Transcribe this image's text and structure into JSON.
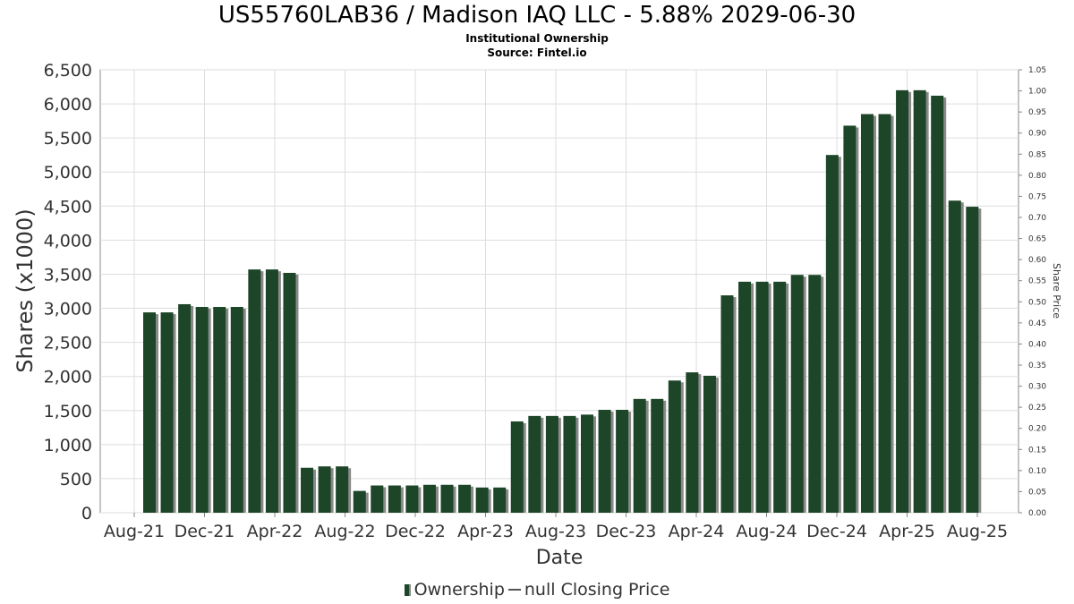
{
  "title": "US55760LAB36 / Madison IAQ LLC - 5.88% 2029-06-30",
  "subtitle": "Institutional Ownership",
  "source": "Source: Fintel.io",
  "legend": {
    "ownership": "Ownership",
    "price": "null Closing Price"
  },
  "colors": {
    "bar": "#1d4527",
    "bar_shadow": "#8a8a8a",
    "grid": "#dddddd",
    "axis": "#888888"
  },
  "chart_data": {
    "type": "bar",
    "xlabel": "Date",
    "ylabel": "Shares (x1000)",
    "y2label": "Share Price",
    "ylim": [
      0,
      6500
    ],
    "y2lim": [
      0,
      1.05
    ],
    "grid": true,
    "legend_position": "bottom",
    "yticks": [
      "0",
      "500",
      "1,000",
      "1,500",
      "2,000",
      "2,500",
      "3,000",
      "3,500",
      "4,000",
      "4,500",
      "5,000",
      "5,500",
      "6,000",
      "6,500"
    ],
    "y2ticks": [
      "0.00",
      "0.05",
      "0.10",
      "0.15",
      "0.20",
      "0.25",
      "0.30",
      "0.35",
      "0.40",
      "0.45",
      "0.50",
      "0.55",
      "0.60",
      "0.65",
      "0.70",
      "0.75",
      "0.80",
      "0.85",
      "0.90",
      "0.95",
      "1.00",
      "1.05"
    ],
    "xticks": [
      "Aug-21",
      "Dec-21",
      "Apr-22",
      "Aug-22",
      "Dec-22",
      "Apr-23",
      "Aug-23",
      "Dec-23",
      "Apr-24",
      "Aug-24",
      "Dec-24",
      "Apr-25",
      "Aug-25"
    ],
    "series": [
      {
        "name": "Ownership",
        "values": [
          2940,
          2940,
          3060,
          3020,
          3020,
          3020,
          3570,
          3570,
          3520,
          660,
          680,
          680,
          320,
          400,
          400,
          400,
          410,
          410,
          410,
          370,
          370,
          1340,
          1420,
          1420,
          1420,
          1440,
          1510,
          1510,
          1670,
          1670,
          1940,
          2060,
          2010,
          3190,
          3390,
          3390,
          3390,
          3490,
          3490,
          5250,
          5680,
          5850,
          5850,
          6200,
          6200,
          6120,
          4580,
          4490
        ]
      }
    ]
  }
}
